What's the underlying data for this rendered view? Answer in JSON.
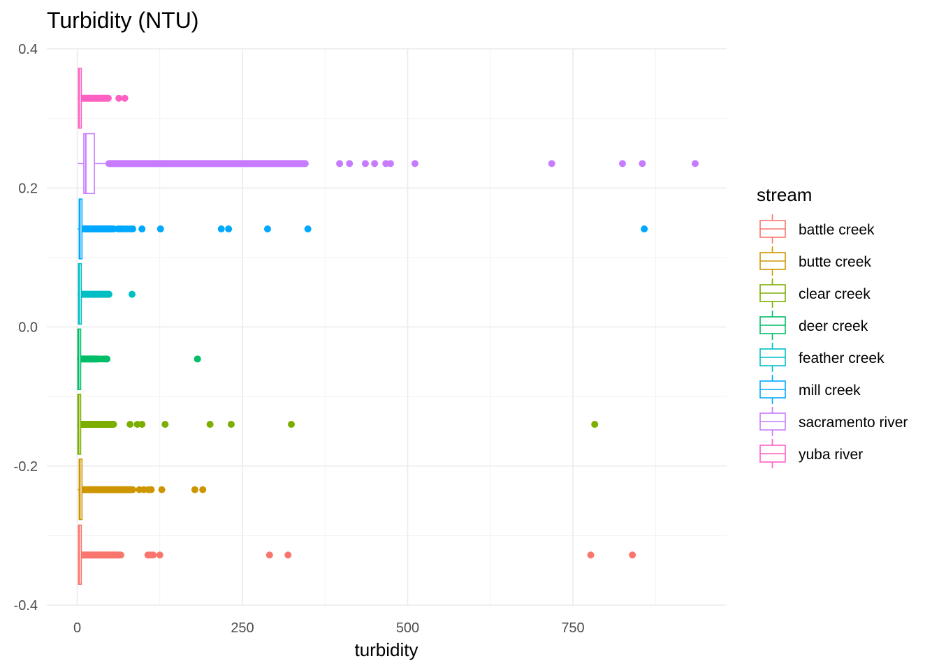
{
  "chart_data": {
    "type": "boxplot",
    "title": "Turbidity (NTU)",
    "xlabel": "turbidity",
    "ylabel": "",
    "xlim": [
      -10,
      980
    ],
    "ylim": [
      -0.4,
      0.4
    ],
    "x_ticks": [
      0,
      250,
      500,
      750
    ],
    "x_tick_labels": [
      "0",
      "250",
      "500",
      "750"
    ],
    "y_ticks": [
      -0.4,
      -0.2,
      0.0,
      0.2,
      0.4
    ],
    "y_tick_labels": [
      "-0.4",
      "-0.2",
      "0.0",
      "0.2",
      "0.4"
    ],
    "grid": true,
    "legend_title": "stream",
    "legend_position": "right",
    "series": [
      {
        "name": "battle creek",
        "color": "#F8766D",
        "y_center": -0.328,
        "y_min": -0.37,
        "y_max": -0.285,
        "q1": 2,
        "median": 3,
        "q3": 4,
        "whisker_low": 1,
        "whisker_high": 7,
        "dense_range": [
          7,
          63
        ],
        "outliers": [
          66,
          107,
          111,
          115,
          125,
          291,
          319,
          777,
          840
        ]
      },
      {
        "name": "butte creek",
        "color": "#CD9600",
        "y_center": -0.234,
        "y_min": -0.277,
        "y_max": -0.19,
        "q1": 3,
        "median": 4,
        "q3": 6,
        "whisker_low": 1,
        "whisker_high": 9,
        "dense_range": [
          9,
          84
        ],
        "outliers": [
          94,
          101,
          108,
          112,
          128,
          178,
          190
        ]
      },
      {
        "name": "clear creek",
        "color": "#7CAE00",
        "y_center": -0.14,
        "y_min": -0.183,
        "y_max": -0.097,
        "q1": 1,
        "median": 2,
        "q3": 3,
        "whisker_low": 0,
        "whisker_high": 5,
        "dense_range": [
          5,
          55
        ],
        "outliers": [
          80,
          91,
          98,
          133,
          201,
          233,
          324,
          783
        ]
      },
      {
        "name": "deer creek",
        "color": "#00BE67",
        "y_center": -0.046,
        "y_min": -0.09,
        "y_max": -0.003,
        "q1": 1,
        "median": 2,
        "q3": 3,
        "whisker_low": 0,
        "whisker_high": 5,
        "dense_range": [
          5,
          30
        ],
        "outliers": [
          33,
          38,
          42,
          45,
          182
        ]
      },
      {
        "name": "feather creek",
        "color": "#00BFC4",
        "y_center": 0.047,
        "y_min": 0.004,
        "y_max": 0.091,
        "q1": 2,
        "median": 3,
        "q3": 4,
        "whisker_low": 1,
        "whisker_high": 6,
        "dense_range": [
          6,
          48
        ],
        "outliers": [
          83
        ]
      },
      {
        "name": "mill creek",
        "color": "#00A9FF",
        "y_center": 0.141,
        "y_min": 0.098,
        "y_max": 0.184,
        "q1": 3,
        "median": 4,
        "q3": 6,
        "whisker_low": 1,
        "whisker_high": 9,
        "dense_range": [
          9,
          55
        ],
        "outliers": [
          62,
          66,
          70,
          75,
          80,
          84,
          98,
          126,
          218,
          229,
          288,
          349,
          858
        ]
      },
      {
        "name": "sacramento river",
        "color": "#C77CFF",
        "y_center": 0.235,
        "y_min": 0.192,
        "y_max": 0.278,
        "q1": 10,
        "median": 13,
        "q3": 26,
        "whisker_low": 1,
        "whisker_high": 48,
        "dense_range": [
          48,
          345
        ],
        "outliers": [
          397,
          412,
          436,
          450,
          467,
          474,
          511,
          718,
          825,
          855,
          935
        ]
      },
      {
        "name": "yuba river",
        "color": "#FF61C3",
        "y_center": 0.329,
        "y_min": 0.286,
        "y_max": 0.372,
        "q1": 2,
        "median": 3,
        "q3": 4,
        "whisker_low": 1,
        "whisker_high": 6,
        "dense_range": [
          6,
          47
        ],
        "outliers": [
          63,
          72
        ]
      }
    ]
  }
}
